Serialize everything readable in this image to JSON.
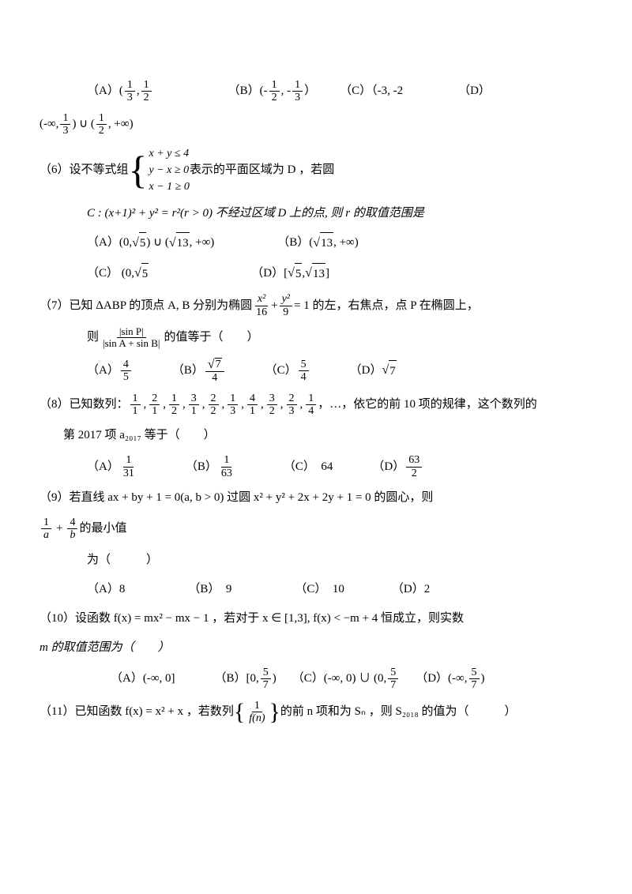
{
  "q5_opts": {
    "row1": {
      "A_label": "（A）(",
      "A_mid": ",",
      "A_num1": "1",
      "A_den1": "3",
      "A_num2": "1",
      "A_den2": "2",
      "B_label": "（B）(-",
      "B_mid": ", -",
      "B_end": "）",
      "B_num1": "1",
      "B_den1": "2",
      "B_num2": "1",
      "B_den2": "3",
      "C_label": "（C）（-3, -2",
      "D_label": "（D）"
    },
    "row2": {
      "pre": "(-∞,",
      "mid": ") ∪ (",
      "end": ", +∞)",
      "num1": "1",
      "den1": "3",
      "num2": "1",
      "den2": "2"
    }
  },
  "q6": {
    "stem_pre": "（6）设不等式组",
    "case1": "x + y ≤ 4",
    "case2": "y − x ≥ 0",
    "case3": "x − 1 ≥ 0",
    "stem_post": " 表示的平面区域为 D ，若圆",
    "line2": "C : (x+1)² + y² = r²(r > 0) 不经过区域 D 上的点, 则 r 的取值范围是",
    "A": "（A）(0,",
    "A_sqrt1": "5",
    "A_mid": ") ∪ (",
    "A_sqrt2": "13",
    "A_end": ", +∞)",
    "B": "（B）(",
    "B_sqrt": "13",
    "B_end": ", +∞)",
    "C": "（C）  (0,",
    "C_sqrt": "5",
    "C_end": "",
    "D": "（D）[",
    "D_sqrt1": "5",
    "D_mid": ", ",
    "D_sqrt2": "13",
    "D_end": "]"
  },
  "q7": {
    "stem_pre": "（7）已知 ΔABP 的顶点 A, B 分别为椭圆",
    "e_num": "x²",
    "e_den": "16",
    "plus": "+",
    "e_num2": "y²",
    "e_den2": "9",
    "eq": "= 1 的左，右焦点，点 P 在椭圆上，",
    "line2_pre": "则",
    "f_num": "|sin P|",
    "f_den": "|sin A + sin B|",
    "line2_post": " 的值等于（　　）",
    "A": "（A）",
    "A_num": "4",
    "A_den": "5",
    "B": "（B）",
    "B_num_pre": "",
    "B_sqrt": "7",
    "B_den": "4",
    "C": "（C）",
    "C_num": "5",
    "C_den": "4",
    "D": "（D）",
    "D_sqrt": "7"
  },
  "q8": {
    "stem_pre": "（8）已知数列：",
    "seq": "",
    "stem_post": "，…，依它的前 10 项的规律，这个数列的",
    "line2": "第 2017 项 a₂₀₁₇ 等于（　　）",
    "A": "（A）",
    "A_num": "1",
    "A_den": "31",
    "B": "（B）",
    "B_num": "1",
    "B_den": "63",
    "C": "（C）　64",
    "D": "（D）",
    "D_num": "63",
    "D_den": "2",
    "terms": [
      {
        "n": "1",
        "d": "1"
      },
      {
        "n": "2",
        "d": "1"
      },
      {
        "n": "1",
        "d": "2"
      },
      {
        "n": "3",
        "d": "1"
      },
      {
        "n": "2",
        "d": "2"
      },
      {
        "n": "1",
        "d": "3"
      },
      {
        "n": "4",
        "d": "1"
      },
      {
        "n": "3",
        "d": "2"
      },
      {
        "n": "2",
        "d": "3"
      },
      {
        "n": "1",
        "d": "4"
      }
    ]
  },
  "q9": {
    "stem": "（9）若直线 ax + by + 1 = 0(a, b > 0) 过圆 x² + y² + 2x + 2y + 1 = 0 的圆心，则",
    "line2_pre": "",
    "f1n": "1",
    "f1d": "a",
    "plus": "+",
    "f2n": "4",
    "f2d": "b",
    "post": " 的最小值",
    "line3": "为（　　　）",
    "A": "（A）8",
    "B": "（B）　9",
    "C": "（C）　10",
    "D": "（D）2"
  },
  "q10": {
    "stem": "（10）设函数 f(x) = mx² − mx − 1 ，若对于 x ∈ [1,3], f(x) < −m + 4 恒成立，则实数",
    "line2": "m 的取值范围为（　　）",
    "A": "（A）(-∞, 0]",
    "B": "（B）[0,",
    "B_num": "5",
    "B_den": "7",
    "B_end": ")",
    "C_pre": "（C）(-∞, 0) ∪ (0,",
    "C_num": "5",
    "C_den": "7",
    "C_end": "",
    "D": "（D）(-∞,",
    "D_num": "5",
    "D_den": "7",
    "D_end": ")"
  },
  "q11": {
    "stem_pre": "（11）已知函数 f(x) = x² + x ，若数列",
    "br_num": "1",
    "br_den": "f(n)",
    "stem_post": " 的前 n 项和为 Sₙ ，则 S₂₀₁₈ 的值为（　　　）"
  }
}
